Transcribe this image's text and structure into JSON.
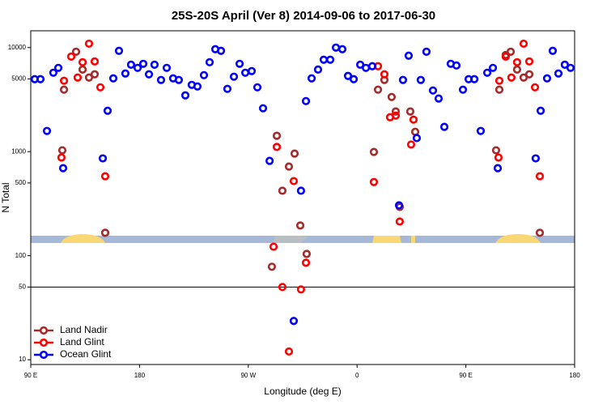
{
  "chart_data": {
    "type": "scatter",
    "title": "25S-20S April (Ver 8)   2014-09-06 to 2017-06-30",
    "x_label": "Longitude (deg E)",
    "y_label": "N Total",
    "xlim": [
      90,
      540
    ],
    "ylim": [
      9,
      14500
    ],
    "log_y": true,
    "xticks": [
      {
        "value": 90,
        "label": "90 E"
      },
      180,
      {
        "value": 270,
        "label": "90 W"
      },
      {
        "value": 360,
        "label": "0"
      },
      {
        "value": 450,
        "label": "90 E"
      },
      {
        "value": 540,
        "label": "180"
      }
    ],
    "yticks": [
      10,
      50,
      100,
      500,
      1000,
      5000,
      10000
    ],
    "reference_line": 50,
    "legend": "lower left",
    "series": [
      {
        "name": "Land Nadir",
        "color": "#a52a2a",
        "x": [
          116.1,
          117.5,
          127.5,
          132.9,
          138.2,
          142.9,
          151.6,
          289.5,
          293.6,
          298.2,
          303.6,
          308.3,
          313.0,
          318.3,
          373.9,
          377.3,
          382.6,
          388.6,
          392.0,
          395.3,
          404.0,
          408.1,
          475.0,
          477.7,
          483.0,
          487.1,
          492.4,
          497.8,
          502.5,
          511.2
        ],
        "values": [
          1030,
          3940,
          9120,
          6150,
          5150,
          5530,
          166,
          78.3,
          1420,
          421,
          719,
          958,
          195,
          104,
          993,
          3940,
          4880,
          3350,
          2430,
          294,
          2430,
          1550,
          1030,
          3940,
          8490,
          9120,
          6150,
          5150,
          5530,
          166
        ]
      },
      {
        "name": "Land Glint",
        "color": "#ff0000",
        "x": [
          117.5,
          115.4,
          123.5,
          128.8,
          132.9,
          138.2,
          142.9,
          147.6,
          151.6,
          290.9,
          293.6,
          298.2,
          303.6,
          307.6,
          313.6,
          317.7,
          373.9,
          377.3,
          382.6,
          387.3,
          392.0,
          395.3,
          404.7,
          406.7,
          477.0,
          477.7,
          483.0,
          487.7,
          492.4,
          497.8,
          502.5,
          507.2,
          511.2
        ],
        "values": [
          4800,
          877,
          8190,
          5150,
          7230,
          10900,
          7360,
          4150,
          580,
          122,
          1110,
          50,
          12.0,
          521,
          47.4,
          85.5,
          510,
          6620,
          5530,
          2140,
          2220,
          213,
          1170,
          2030,
          877,
          4800,
          8190,
          5150,
          7230,
          10900,
          7360,
          4150,
          580
        ]
      },
      {
        "name": "Ocean Glint",
        "color": "#0000ff",
        "x": [
          93.3,
          98.0,
          103.4,
          108.7,
          112.8,
          116.8,
          149.6,
          153.6,
          158.3,
          163.0,
          168.3,
          173.0,
          178.4,
          183.1,
          187.8,
          192.4,
          197.8,
          202.5,
          207.8,
          212.5,
          217.9,
          223.2,
          227.9,
          233.3,
          238.0,
          242.7,
          247.4,
          252.7,
          258.1,
          262.8,
          267.5,
          272.8,
          277.5,
          282.2,
          287.6,
          307.6,
          313.6,
          317.7,
          322.4,
          327.7,
          332.4,
          337.8,
          342.5,
          347.8,
          352.5,
          357.2,
          362.6,
          367.3,
          372.6,
          394.7,
          398.0,
          402.7,
          409.4,
          412.7,
          417.4,
          422.8,
          427.5,
          432.2,
          437.5,
          442.2,
          447.6,
          452.3,
          457.0,
          462.3,
          467.7,
          472.4,
          476.4,
          507.8,
          511.9,
          517.2,
          521.9,
          526.6,
          531.9,
          536.6
        ],
        "values": [
          4970,
          4970,
          1580,
          5730,
          6380,
          693,
          861,
          2470,
          5060,
          9300,
          5630,
          6850,
          6380,
          6980,
          5530,
          6850,
          4880,
          6380,
          5060,
          4880,
          3470,
          4380,
          4230,
          5430,
          7230,
          9640,
          9300,
          4010,
          5250,
          6980,
          5730,
          5940,
          4150,
          2610,
          815,
          23.6,
          421,
          3060,
          5060,
          6150,
          7640,
          7640,
          10000,
          9640,
          5340,
          4970,
          6850,
          6380,
          6620,
          305,
          4880,
          8360,
          1350,
          4880,
          9120,
          3870,
          3240,
          1730,
          6980,
          6730,
          3940,
          4970,
          4970,
          1580,
          5730,
          6380,
          693,
          861,
          2470,
          5060,
          9300,
          5630,
          6850,
          6380
        ]
      }
    ]
  }
}
